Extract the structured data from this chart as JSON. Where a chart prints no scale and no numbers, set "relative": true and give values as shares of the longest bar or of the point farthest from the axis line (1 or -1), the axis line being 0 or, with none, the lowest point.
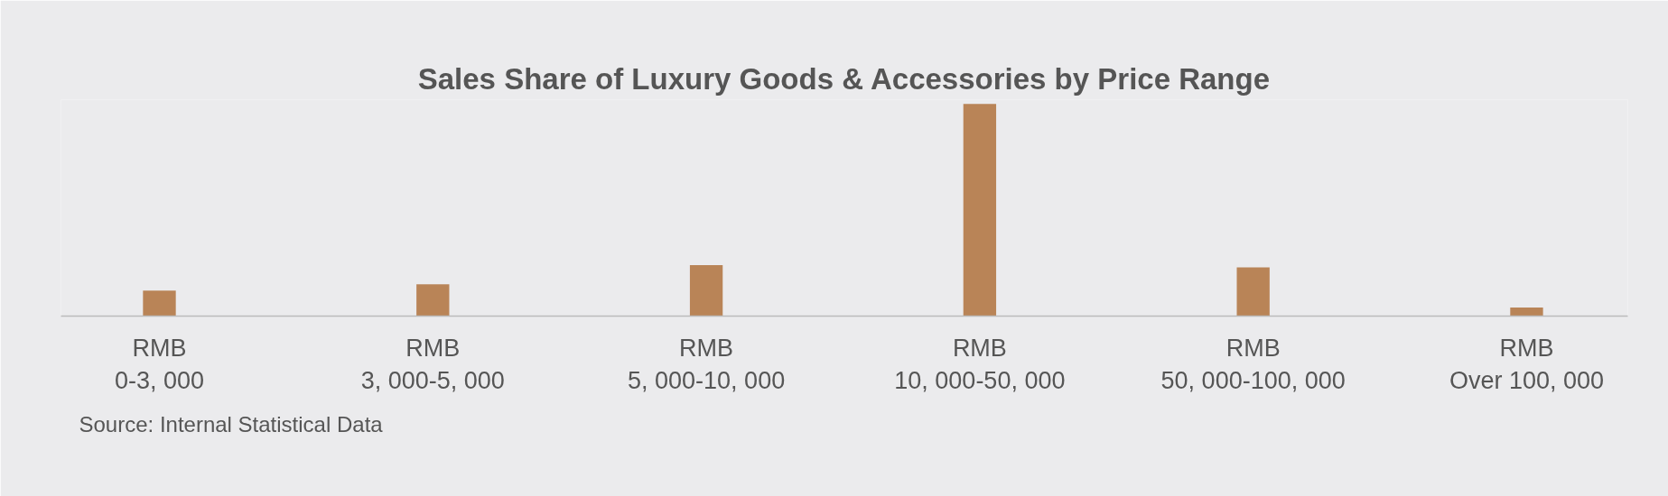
{
  "chart_data": {
    "type": "bar",
    "relative": true,
    "title": "Sales Share of Luxury Goods & Accessories by Price Range",
    "categories": [
      "RMB\n0-3, 000",
      "RMB\n3, 000-5, 000",
      "RMB\n5, 000-10, 000",
      "RMB\n10, 000-50, 000",
      "RMB\n50, 000-100, 000",
      "RMB\nOver 100, 000"
    ],
    "values": [
      0.12,
      0.15,
      0.24,
      1,
      0.23,
      0.04
    ],
    "color": "#b98457",
    "annotations": [
      "Source: Internal Statistical Data"
    ],
    "grid": false
  }
}
